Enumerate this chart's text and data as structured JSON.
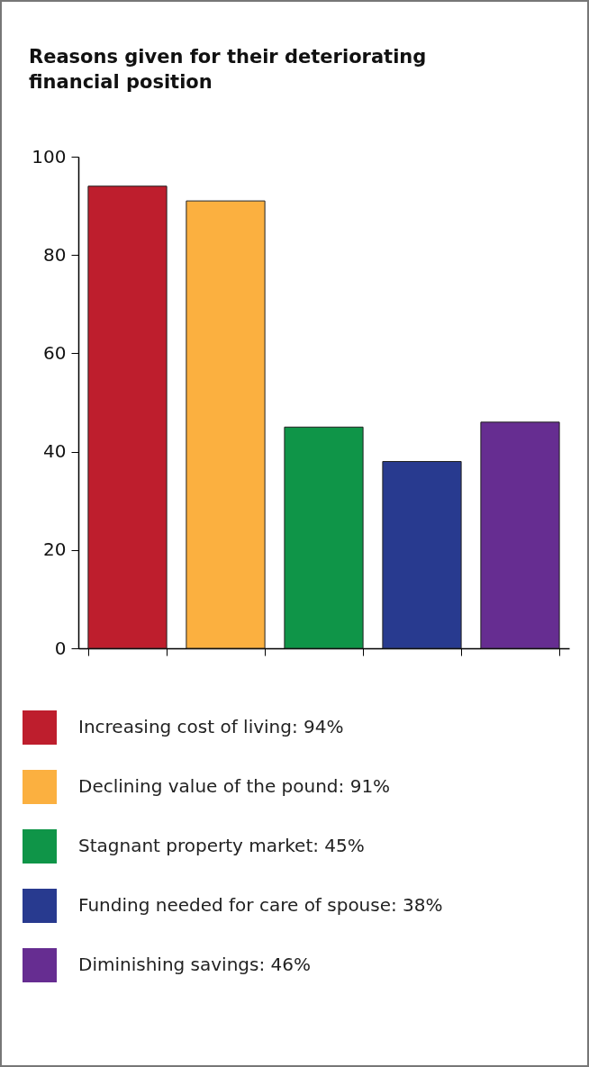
{
  "chart_data": {
    "type": "bar",
    "title": "Reasons given for their deteriorating financial position",
    "categories": [
      null,
      null,
      null,
      null,
      null
    ],
    "series": [
      {
        "name": "Increasing cost of living: 94%",
        "color": "#be1e2d",
        "values": [
          94,
          null,
          null,
          null,
          null
        ]
      },
      {
        "name": "Declining value of the pound: 91%",
        "color": "#fbb040",
        "values": [
          null,
          91,
          null,
          null,
          null
        ]
      },
      {
        "name": "Stagnant property market: 45%",
        "color": "#0f9548",
        "values": [
          null,
          null,
          45,
          null,
          null
        ]
      },
      {
        "name": "Funding needed for care of spouse: 38%",
        "color": "#283a8f",
        "values": [
          null,
          null,
          null,
          38,
          null
        ]
      },
      {
        "name": "Diminishing savings: 46%",
        "color": "#662d91",
        "values": [
          null,
          null,
          null,
          null,
          46
        ]
      }
    ],
    "ylim": [
      0,
      100
    ],
    "yticks": [
      0,
      20,
      40,
      60,
      80,
      100
    ],
    "tick_labels": "y",
    "legend": "bottom",
    "grid": false
  }
}
